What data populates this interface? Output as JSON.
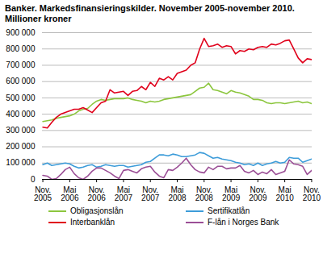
{
  "chart_data": {
    "type": "line",
    "title": "Banker. Markedsfinansieringskilder. November 2005-november 2010.",
    "subtitle": "Millioner kroner",
    "categories": [
      "Nov. 2005",
      null,
      null,
      null,
      null,
      null,
      "Mai 2006",
      null,
      null,
      null,
      null,
      null,
      "Nov. 2006",
      null,
      null,
      null,
      null,
      null,
      "Mai 2007",
      null,
      null,
      null,
      null,
      null,
      "Nov. 2007",
      null,
      null,
      null,
      null,
      null,
      "Mai 2008",
      null,
      null,
      null,
      null,
      null,
      "Nov. 2008",
      null,
      null,
      null,
      null,
      null,
      "Mai 2009",
      null,
      null,
      null,
      null,
      null,
      "Nov. 2009",
      null,
      null,
      null,
      null,
      null,
      "Mai 2010",
      null,
      null,
      null,
      null,
      null,
      "Nov. 2010"
    ],
    "series": [
      {
        "name": "Obligasjonslån",
        "color": "#8cc63e",
        "values": [
          355000,
          360000,
          365000,
          375000,
          380000,
          385000,
          390000,
          400000,
          420000,
          430000,
          435000,
          460000,
          480000,
          490000,
          485000,
          490000,
          495000,
          495000,
          495000,
          500000,
          490000,
          485000,
          480000,
          470000,
          480000,
          475000,
          480000,
          490000,
          495000,
          500000,
          505000,
          510000,
          515000,
          520000,
          540000,
          560000,
          565000,
          590000,
          550000,
          545000,
          535000,
          525000,
          545000,
          535000,
          530000,
          520000,
          510000,
          490000,
          490000,
          485000,
          470000,
          465000,
          470000,
          470000,
          465000,
          470000,
          475000,
          480000,
          470000,
          475000,
          465000
        ]
      },
      {
        "name": "Sertifikatlån",
        "color": "#3d9cd9",
        "values": [
          90000,
          100000,
          85000,
          90000,
          95000,
          100000,
          95000,
          80000,
          70000,
          75000,
          85000,
          90000,
          75000,
          80000,
          90000,
          85000,
          80000,
          85000,
          85000,
          75000,
          80000,
          85000,
          90000,
          105000,
          110000,
          130000,
          150000,
          150000,
          145000,
          155000,
          150000,
          140000,
          140000,
          145000,
          150000,
          165000,
          160000,
          145000,
          130000,
          135000,
          125000,
          120000,
          115000,
          105000,
          100000,
          90000,
          95000,
          85000,
          100000,
          85000,
          95000,
          100000,
          110000,
          100000,
          105000,
          135000,
          130000,
          130000,
          105000,
          115000,
          125000
        ]
      },
      {
        "name": "Interbanklån",
        "color": "#e0001b",
        "values": [
          320000,
          315000,
          350000,
          380000,
          400000,
          410000,
          420000,
          430000,
          430000,
          440000,
          425000,
          410000,
          440000,
          470000,
          480000,
          550000,
          530000,
          535000,
          540000,
          515000,
          540000,
          545000,
          570000,
          550000,
          595000,
          570000,
          620000,
          610000,
          630000,
          610000,
          650000,
          660000,
          670000,
          700000,
          715000,
          800000,
          865000,
          815000,
          820000,
          830000,
          810000,
          820000,
          815000,
          770000,
          790000,
          785000,
          800000,
          795000,
          810000,
          815000,
          810000,
          830000,
          825000,
          835000,
          850000,
          855000,
          800000,
          745000,
          715000,
          740000,
          735000
        ]
      },
      {
        "name": "F-lån i Norges Bank",
        "color": "#9b4f96",
        "values": [
          25000,
          20000,
          0,
          5000,
          30000,
          60000,
          75000,
          35000,
          10000,
          0,
          20000,
          50000,
          70000,
          70000,
          55000,
          40000,
          20000,
          5000,
          55000,
          60000,
          50000,
          40000,
          65000,
          75000,
          80000,
          45000,
          20000,
          10000,
          60000,
          55000,
          75000,
          100000,
          130000,
          90000,
          60000,
          45000,
          40000,
          75000,
          60000,
          80000,
          80000,
          65000,
          70000,
          70000,
          85000,
          50000,
          40000,
          55000,
          30000,
          45000,
          35000,
          60000,
          30000,
          40000,
          50000,
          120000,
          95000,
          90000,
          80000,
          30000,
          55000
        ]
      }
    ],
    "ylim": [
      0,
      900000
    ],
    "yticks": [
      0,
      {
        "value": 100000,
        "label": "100 000"
      },
      {
        "value": 200000,
        "label": "200 000"
      },
      {
        "value": 300000,
        "label": "300 000"
      },
      {
        "value": 400000,
        "label": "400 000"
      },
      {
        "value": 500000,
        "label": "500 000"
      },
      {
        "value": 600000,
        "label": "600 000"
      },
      {
        "value": 700000,
        "label": "700 000"
      },
      {
        "value": 800000,
        "label": "800 000"
      },
      {
        "value": 900000,
        "label": "900 000"
      }
    ],
    "grid": true,
    "legend": "bottom"
  }
}
